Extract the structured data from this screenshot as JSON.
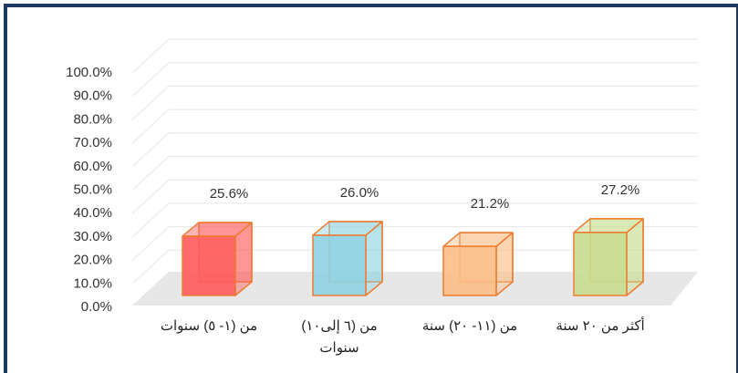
{
  "chart_data": {
    "type": "bar3d",
    "categories": [
      "من (١- ٥) سنوات",
      "من (٦ إلى١٠)\nسنوات",
      "من (١١- ٢٠) سنة",
      "أكثر من ٢٠ سنة"
    ],
    "values": [
      25.6,
      26.0,
      21.2,
      27.2
    ],
    "value_labels": [
      "25.6%",
      "26.0%",
      "21.2%",
      "27.2%"
    ],
    "colors": [
      "#ff5b5b",
      "#8fd3e2",
      "#fbbf87",
      "#c7dd8e"
    ],
    "edge_color": "#ed7d31",
    "ylim": [
      0,
      100
    ],
    "yticks": [
      {
        "value": 0,
        "label": "0.0%"
      },
      {
        "value": 10,
        "label": "10.0%"
      },
      {
        "value": 20,
        "label": "20.0%"
      },
      {
        "value": 30,
        "label": "30.0%"
      },
      {
        "value": 40,
        "label": "40.0%"
      },
      {
        "value": 50,
        "label": "50.0%"
      },
      {
        "value": 60,
        "label": "60.0%"
      },
      {
        "value": 70,
        "label": "70.0%"
      },
      {
        "value": 80,
        "label": "80.0%"
      },
      {
        "value": 90,
        "label": "90.0%"
      },
      {
        "value": 100,
        "label": "100.0%"
      }
    ],
    "grid": true
  }
}
